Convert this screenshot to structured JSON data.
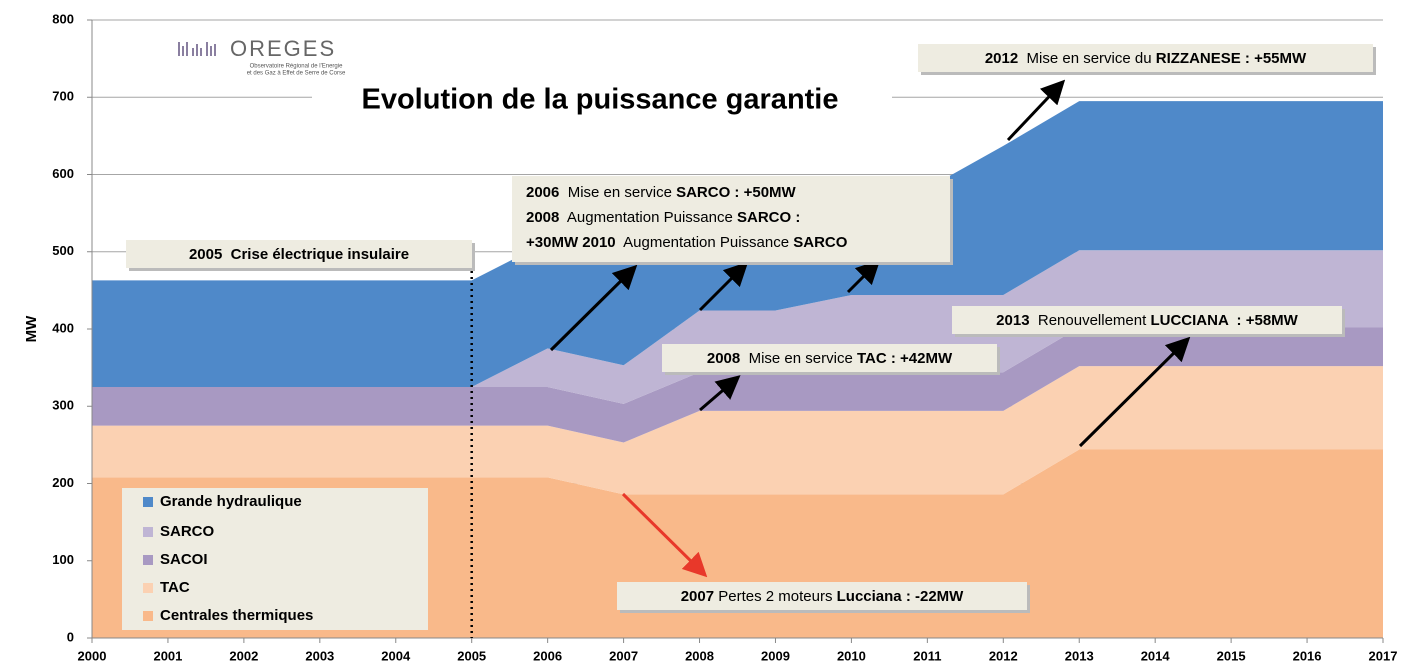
{
  "chart_data": {
    "type": "stacked_area",
    "title": "Evolution de la puissance garantie",
    "logo": {
      "name": "OREGES",
      "lines": [
        "Observatoire Régional de l'Energie",
        "et des Gaz à Effet de Serre de Corse"
      ]
    },
    "ylabel": "MW",
    "x": [
      2000,
      2001,
      2002,
      2003,
      2004,
      2005,
      2006,
      2007,
      2008,
      2009,
      2010,
      2011,
      2012,
      2013,
      2014,
      2015,
      2016,
      2017
    ],
    "xlim": [
      2000,
      2017
    ],
    "xticks": [
      2000,
      2001,
      2002,
      2003,
      2004,
      2005,
      2006,
      2007,
      2008,
      2009,
      2010,
      2011,
      2012,
      2013,
      2014,
      2015,
      2016,
      2017
    ],
    "ylim": [
      0,
      800
    ],
    "yticks": [
      0,
      100,
      200,
      300,
      400,
      500,
      600,
      700,
      800
    ],
    "grid": true,
    "series": [
      {
        "name": "Centrales thermiques",
        "color": "#f9b98a",
        "values": [
          208,
          208,
          208,
          208,
          208,
          208,
          208,
          186,
          186,
          186,
          186,
          186,
          186,
          244,
          244,
          244,
          244,
          244
        ]
      },
      {
        "name": "TAC",
        "color": "#fbd1b2",
        "values": [
          67,
          67,
          67,
          67,
          67,
          67,
          67,
          67,
          108,
          108,
          108,
          108,
          108,
          108,
          108,
          108,
          108,
          108
        ]
      },
      {
        "name": "SACOI",
        "color": "#a899c2",
        "values": [
          50,
          50,
          50,
          50,
          50,
          50,
          50,
          50,
          50,
          50,
          50,
          50,
          50,
          50,
          50,
          50,
          50,
          50
        ]
      },
      {
        "name": "SARCO",
        "color": "#bfb5d4",
        "values": [
          0,
          0,
          0,
          0,
          0,
          0,
          50,
          50,
          80,
          80,
          100,
          100,
          100,
          100,
          100,
          100,
          100,
          100
        ]
      },
      {
        "name": "Grande hydraulique",
        "color": "#4f89c9",
        "values": [
          138,
          138,
          138,
          138,
          138,
          138,
          138,
          138,
          138,
          138,
          138,
          138,
          193,
          193,
          193,
          193,
          193,
          193
        ]
      }
    ],
    "annotations": [
      {
        "lines": [
          [
            {
              "text": "2012",
              "bold": true
            },
            {
              "text": "  Mise en service du ",
              "bold": false
            },
            {
              "text": "RIZZANESE : +55MW",
              "bold": true
            }
          ]
        ]
      },
      {
        "lines": [
          [
            {
              "text": "2006",
              "bold": true
            },
            {
              "text": "  Mise en service ",
              "bold": false
            },
            {
              "text": "SARCO : +50MW",
              "bold": true
            }
          ],
          [
            {
              "text": "2008",
              "bold": true
            },
            {
              "text": "  Augmentation Puissance ",
              "bold": false
            },
            {
              "text": "SARCO :",
              "bold": true
            }
          ],
          [
            {
              "text": "+30MW 2010",
              "bold": true
            },
            {
              "text": "  Augmentation Puissance ",
              "bold": false
            },
            {
              "text": "SARCO",
              "bold": true
            }
          ]
        ]
      },
      {
        "lines": [
          [
            {
              "text": "2005  Crise électrique insulaire",
              "bold": true
            }
          ]
        ]
      },
      {
        "lines": [
          [
            {
              "text": "2013",
              "bold": true
            },
            {
              "text": "  Renouvellement ",
              "bold": false
            },
            {
              "text": "LUCCIANA  : +58MW",
              "bold": true
            }
          ]
        ]
      },
      {
        "lines": [
          [
            {
              "text": "2008",
              "bold": true
            },
            {
              "text": "  Mise en service ",
              "bold": false
            },
            {
              "text": "TAC : +42MW",
              "bold": true
            }
          ]
        ]
      },
      {
        "lines": [
          [
            {
              "text": "2007",
              "bold": true
            },
            {
              "text": " Pertes 2 moteurs ",
              "bold": false
            },
            {
              "text": "Lucciana : -22MW",
              "bold": true
            }
          ]
        ]
      }
    ]
  }
}
